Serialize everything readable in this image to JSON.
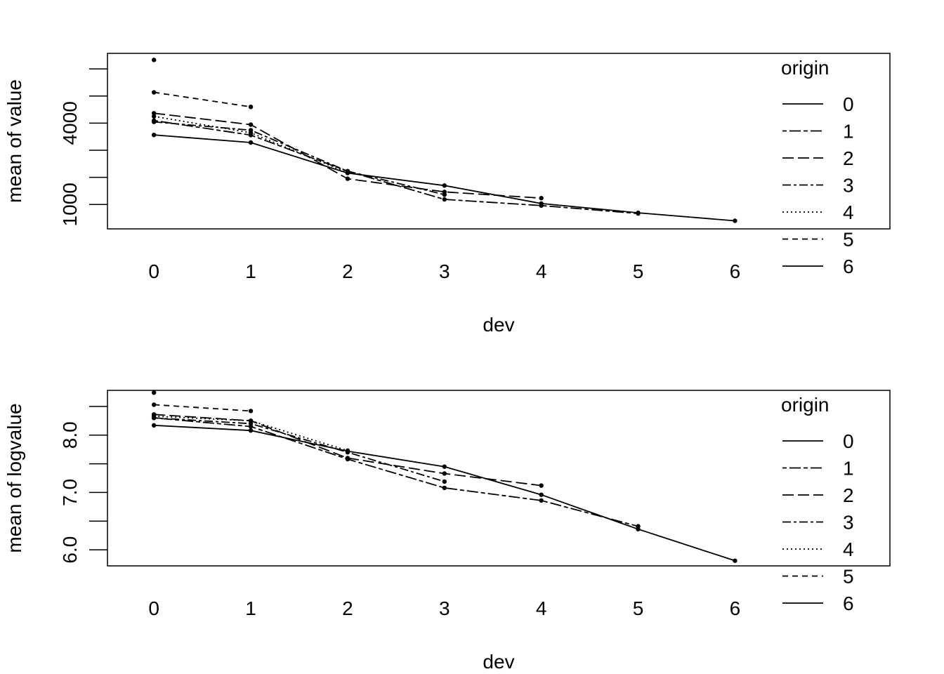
{
  "chart_data": [
    {
      "type": "line",
      "xlabel": "dev",
      "ylabel": "mean of  value",
      "x": [
        0,
        1,
        2,
        3,
        4,
        5,
        6
      ],
      "xlim": [
        -0.48,
        7.6
      ],
      "ylim": [
        102,
        6572
      ],
      "yticks": [
        1000,
        2000,
        3000,
        4000,
        5000,
        6000
      ],
      "ytick_labels": [
        "1000",
        "",
        "",
        "4000",
        "",
        ""
      ],
      "legend": {
        "title": "origin",
        "position": "right"
      },
      "series": [
        {
          "name": "0",
          "dash": "solid",
          "values": [
            3565,
            3285,
            2160,
            1700,
            1035,
            695,
            400
          ]
        },
        {
          "name": "1",
          "dash": "dashdot",
          "values": [
            4095,
            3560,
            2230,
            1190,
            960,
            670,
            null
          ]
        },
        {
          "name": "2",
          "dash": "longdash",
          "values": [
            4365,
            3945,
            1950,
            1465,
            1235,
            null,
            null
          ]
        },
        {
          "name": "3",
          "dash": "twodash",
          "values": [
            4045,
            3740,
            2230,
            1365,
            null,
            null,
            null
          ]
        },
        {
          "name": "4",
          "dash": "dotted",
          "values": [
            4250,
            3645,
            2170,
            null,
            null,
            null,
            null
          ]
        },
        {
          "name": "5",
          "dash": "dashed",
          "values": [
            5135,
            4600,
            null,
            null,
            null,
            null,
            null
          ]
        },
        {
          "name": "6",
          "dash": "solid",
          "values": [
            6330,
            null,
            null,
            null,
            null,
            null,
            null
          ]
        }
      ]
    },
    {
      "type": "line",
      "xlabel": "dev",
      "ylabel": "mean of  logvalue",
      "x": [
        0,
        1,
        2,
        3,
        4,
        5,
        6
      ],
      "xlim": [
        -0.48,
        7.6
      ],
      "ylim": [
        5.72,
        8.78
      ],
      "yticks": [
        6.0,
        6.5,
        7.0,
        7.5,
        8.0,
        8.5
      ],
      "ytick_labels": [
        "6.0",
        "",
        "7.0",
        "",
        "8.0",
        ""
      ],
      "legend": {
        "title": "origin",
        "position": "right"
      },
      "series": [
        {
          "name": "0",
          "dash": "solid",
          "values": [
            8.17,
            8.08,
            7.72,
            7.45,
            6.96,
            6.36,
            5.81
          ]
        },
        {
          "name": "1",
          "dash": "dashdot",
          "values": [
            8.3,
            8.15,
            7.58,
            7.08,
            6.86,
            6.41,
            null
          ]
        },
        {
          "name": "2",
          "dash": "longdash",
          "values": [
            8.36,
            8.25,
            7.6,
            7.33,
            7.12,
            null,
            null
          ]
        },
        {
          "name": "3",
          "dash": "twodash",
          "values": [
            8.3,
            8.2,
            7.7,
            7.19,
            null,
            null,
            null
          ]
        },
        {
          "name": "4",
          "dash": "dotted",
          "values": [
            8.33,
            8.25,
            7.73,
            null,
            null,
            null,
            null
          ]
        },
        {
          "name": "5",
          "dash": "dashed",
          "values": [
            8.53,
            8.42,
            null,
            null,
            null,
            null,
            null
          ]
        },
        {
          "name": "6",
          "dash": "solid",
          "values": [
            8.74,
            null,
            null,
            null,
            null,
            null,
            null
          ]
        }
      ]
    }
  ]
}
